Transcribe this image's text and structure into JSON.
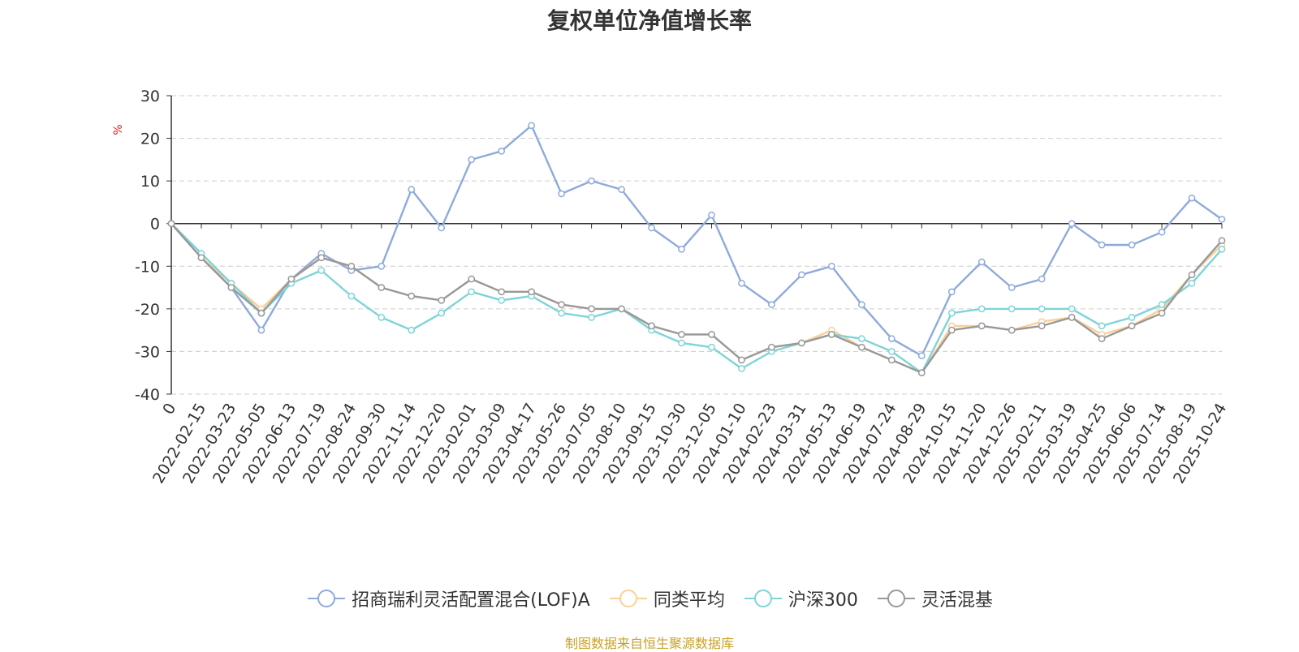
{
  "chart_data": {
    "type": "line",
    "title": "复权单位净值增长率",
    "ylabel": "%",
    "ylim": [
      -40,
      30
    ],
    "yticks": [
      30,
      20,
      10,
      0,
      -10,
      -20,
      -30,
      -40
    ],
    "categories": [
      "0",
      "2022-02-15",
      "2022-03-23",
      "2022-05-05",
      "2022-06-13",
      "2022-07-19",
      "2022-08-24",
      "2022-09-30",
      "2022-11-14",
      "2022-12-20",
      "2023-02-01",
      "2023-03-09",
      "2023-04-17",
      "2023-05-26",
      "2023-07-05",
      "2023-08-10",
      "2023-09-15",
      "2023-10-30",
      "2023-12-05",
      "2024-01-10",
      "2024-02-23",
      "2024-03-31",
      "2024-05-13",
      "2024-06-19",
      "2024-07-24",
      "2024-08-29",
      "2024-10-15",
      "2024-11-20",
      "2024-12-26",
      "2025-02-11",
      "2025-03-19",
      "2025-04-25",
      "2025-06-06",
      "2025-07-14",
      "2025-08-19",
      "2025-10-24"
    ],
    "series": [
      {
        "name": "招商瑞利灵活配置混合(LOF)A",
        "color": "#8eaadb",
        "values": [
          0,
          -8,
          -15,
          -25,
          -13,
          -7,
          -11,
          -10,
          8,
          -1,
          15,
          17,
          23,
          7,
          10,
          8,
          -1,
          -6,
          2,
          -14,
          -19,
          -12,
          -10,
          -19,
          -27,
          -31,
          -16,
          -9,
          -15,
          -13,
          0,
          -5,
          -5,
          -2,
          6,
          1
        ]
      },
      {
        "name": "同类平均",
        "color": "#fad097",
        "values": [
          0,
          -8,
          -14,
          -20,
          -13,
          -8,
          -10,
          -15,
          -17,
          -18,
          -13,
          -16,
          -16,
          -19,
          -20,
          -20,
          -24,
          -26,
          -26,
          -32,
          -29,
          -28,
          -25,
          -29,
          -32,
          -35,
          -24,
          -24,
          -25,
          -23,
          -22,
          -26,
          -24,
          -20,
          -12,
          -5
        ]
      },
      {
        "name": "沪深300",
        "color": "#7dd4d8",
        "values": [
          0,
          -7,
          -14,
          -21,
          -14,
          -11,
          -17,
          -22,
          -25,
          -21,
          -16,
          -18,
          -17,
          -21,
          -22,
          -20,
          -25,
          -28,
          -29,
          -34,
          -30,
          -28,
          -26,
          -27,
          -30,
          -35,
          -21,
          -20,
          -20,
          -20,
          -20,
          -24,
          -22,
          -19,
          -14,
          -6
        ]
      },
      {
        "name": "灵活混基",
        "color": "#999999",
        "values": [
          0,
          -8,
          -15,
          -21,
          -13,
          -8,
          -10,
          -15,
          -17,
          -18,
          -13,
          -16,
          -16,
          -19,
          -20,
          -20,
          -24,
          -26,
          -26,
          -32,
          -29,
          -28,
          -26,
          -29,
          -32,
          -35,
          -25,
          -24,
          -25,
          -24,
          -22,
          -27,
          -24,
          -21,
          -12,
          -4
        ]
      }
    ]
  },
  "source": "制图数据来自恒生聚源数据库"
}
